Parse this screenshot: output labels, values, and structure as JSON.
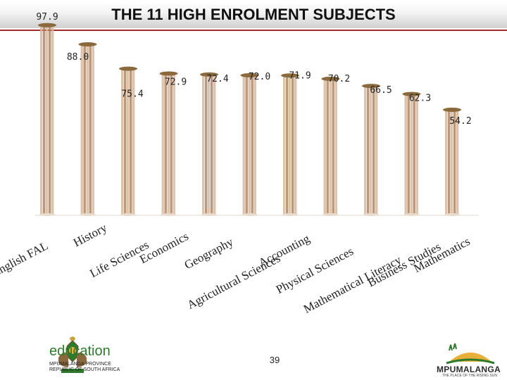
{
  "page": {
    "title": "THE 11 HIGH ENROLMENT SUBJECTS",
    "page_number": "39",
    "footer_left": {
      "brand": "education",
      "line1": "MPUMALANGA PROVINCE",
      "line2": "REPUBLIC OF SOUTH AFRICA"
    },
    "footer_right": {
      "brand": "MPUMALANGA",
      "tagline": "THE PLACE OF THE RISING SUN"
    }
  },
  "colors": {
    "column": "#d7b89c",
    "column_dark": "#b08662",
    "cap": "#8a6a3c",
    "title_rule": "#a22a2a"
  },
  "chart_data": {
    "type": "bar",
    "title": "THE 11 HIGH ENROLMENT SUBJECTS",
    "categories": [
      "English FAL",
      "History",
      "Life Sciences",
      "Economics",
      "Geography",
      "Agricultural Sciences",
      "Accounting",
      "Physical Sciences",
      "Mathematical Literacy",
      "Business Studies",
      "Mathematics"
    ],
    "values": [
      97.9,
      88.0,
      75.4,
      72.9,
      72.4,
      72.0,
      71.9,
      70.2,
      66.5,
      62.3,
      54.2
    ],
    "value_labels": [
      "97.9",
      "88.0",
      "75.4",
      "72.9",
      "72.4",
      "72.0",
      "71.9",
      "70.2",
      "66.5",
      "62.3",
      "54.2"
    ],
    "ylim": [
      0,
      100
    ],
    "grid": false,
    "legend": "none"
  }
}
